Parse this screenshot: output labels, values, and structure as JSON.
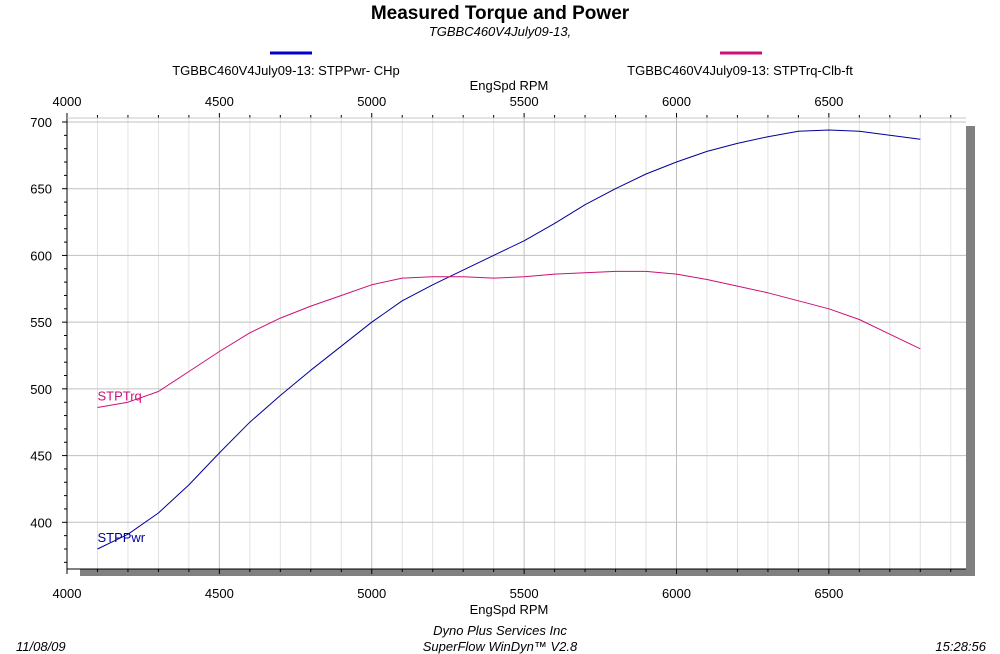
{
  "header": {
    "title": "Measured Torque and Power",
    "subtitle": "TGBBC460V4July09-13,"
  },
  "legend": [
    {
      "label": "TGBBC460V4July09-13: STPPwr- CHp",
      "color": "#0000cc"
    },
    {
      "label": "TGBBC460V4July09-13: STPTrq-Clb-ft",
      "color": "#cc1177"
    }
  ],
  "footer": {
    "date": "11/08/09",
    "company": "Dyno Plus Services Inc",
    "software": "SuperFlow WinDyn™ V2.8",
    "time": "15:28:56"
  },
  "chart_data": {
    "type": "line",
    "xlabel": "EngSpd  RPM",
    "xlabel_top": "EngSpd  RPM",
    "ylabel": "",
    "xlim": [
      4000,
      6950
    ],
    "ylim": [
      365,
      703
    ],
    "x_ticks": [
      4000,
      4500,
      5000,
      5500,
      6000,
      6500
    ],
    "y_ticks": [
      400,
      450,
      500,
      550,
      600,
      650,
      700
    ],
    "grid": true,
    "series": [
      {
        "name": "STPPwr",
        "color": "#000099",
        "x": [
          4100,
          4200,
          4300,
          4400,
          4500,
          4600,
          4700,
          4800,
          4900,
          5000,
          5100,
          5200,
          5300,
          5400,
          5500,
          5600,
          5700,
          5800,
          5900,
          6000,
          6100,
          6200,
          6300,
          6400,
          6500,
          6600,
          6700,
          6800
        ],
        "values": [
          380,
          391,
          407,
          428,
          452,
          475,
          495,
          514,
          532,
          550,
          566,
          578,
          589,
          600,
          611,
          624,
          638,
          650,
          661,
          670,
          678,
          684,
          689,
          693,
          694,
          693,
          690,
          687
        ]
      },
      {
        "name": "STPTrq",
        "color": "#cc1177",
        "x": [
          4100,
          4200,
          4300,
          4400,
          4500,
          4600,
          4700,
          4800,
          4900,
          5000,
          5100,
          5200,
          5300,
          5400,
          5500,
          5600,
          5700,
          5800,
          5900,
          6000,
          6100,
          6200,
          6300,
          6400,
          6500,
          6600,
          6700,
          6800
        ],
        "values": [
          486,
          490,
          498,
          513,
          528,
          542,
          553,
          562,
          570,
          578,
          583,
          584,
          584,
          583,
          584,
          586,
          587,
          588,
          588,
          586,
          582,
          577,
          572,
          566,
          560,
          552,
          541,
          530
        ]
      }
    ]
  }
}
